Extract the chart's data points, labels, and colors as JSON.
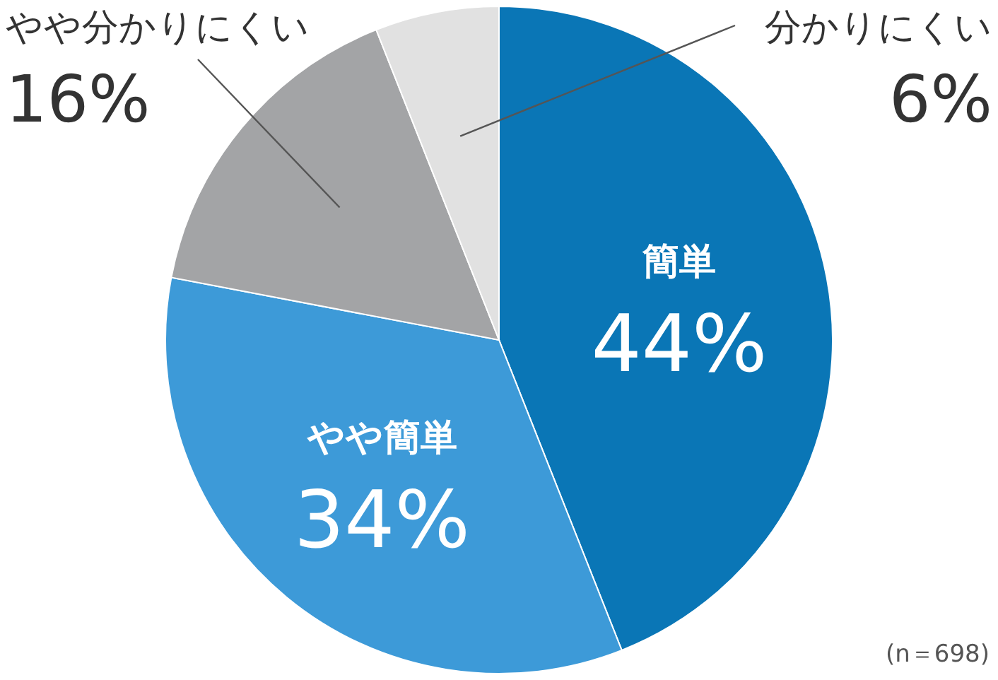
{
  "chart_data": {
    "type": "pie",
    "categories": [
      "簡単",
      "やや簡単",
      "やや分かりにくい",
      "分かりにくい"
    ],
    "values": [
      44,
      34,
      16,
      6
    ],
    "value_labels": [
      "44%",
      "34%",
      "16%",
      "6%"
    ],
    "colors": [
      "#0a76b6",
      "#3d9ad8",
      "#a3a4a6",
      "#e1e1e1"
    ],
    "annotations": [
      "(n＝698)"
    ]
  }
}
